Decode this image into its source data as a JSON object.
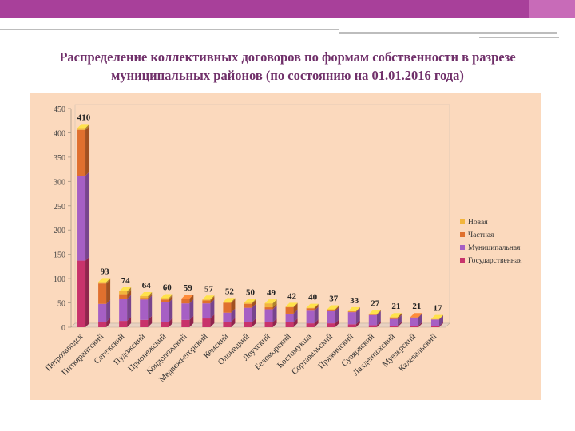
{
  "slide": {
    "title_line1": "Распределение коллективных договоров по формам собственности в разрезе",
    "title_line2": "муниципальных районов (по состоянию на 01.01.2016 года)"
  },
  "colors": {
    "header_bar": "#a8409a",
    "title_text": "#70306a",
    "plot_background": "#fbd9bd",
    "series_new": "#f2b53c",
    "series_private": "#e0702e",
    "series_municipal": "#a65fc4",
    "series_state": "#c8336b"
  },
  "chart_data": {
    "type": "bar",
    "stacked": true,
    "title": "Распределение коллективных договоров по формам собственности в разрезе муниципальных районов (по состоянию на 01.01.2016 года)",
    "xlabel": "",
    "ylabel": "",
    "ylim": [
      0,
      450
    ],
    "ytick_labels": [
      "0",
      "50",
      "100",
      "150",
      "200",
      "250",
      "300",
      "350",
      "400",
      "450"
    ],
    "legend_position": "right",
    "categories": [
      "Петрозаводск",
      "Питкярантский",
      "Сегежский",
      "Пудожский",
      "Прионежский",
      "Кондопожский",
      "Медвежьегорский",
      "Кемский",
      "Олонецкий",
      "Лоухский",
      "Беломорский",
      "Костомукша",
      "Сортавальский",
      "Пряжинский",
      "Суоярвский",
      "Лахденпохский",
      "Муезерский",
      "Калевальский"
    ],
    "totals": [
      410,
      93,
      74,
      64,
      60,
      59,
      57,
      52,
      50,
      49,
      42,
      40,
      37,
      33,
      27,
      21,
      21,
      17
    ],
    "total_labels": [
      "410",
      "93",
      "74",
      "64",
      "60",
      "59",
      "57",
      "52",
      "50",
      "49",
      "42",
      "40",
      "37",
      "33",
      "27",
      "21",
      "21",
      "17"
    ],
    "series": [
      {
        "name": "Государственная",
        "color": "#c8336b",
        "values": [
          137,
          11,
          13,
          15,
          11,
          15,
          18,
          11,
          10,
          10,
          10,
          8,
          8,
          6,
          4,
          3,
          3,
          2
        ]
      },
      {
        "name": "Муниципальная",
        "color": "#a65fc4",
        "values": [
          175,
          37,
          45,
          42,
          40,
          34,
          31,
          19,
          30,
          27,
          18,
          26,
          25,
          25,
          21,
          14,
          17,
          14
        ]
      },
      {
        "name": "Частная",
        "color": "#e0702e",
        "values": [
          94,
          42,
          10,
          3,
          6,
          10,
          6,
          20,
          8,
          4,
          13,
          5,
          3,
          1,
          1,
          3,
          1,
          0
        ]
      },
      {
        "name": "Новая",
        "color": "#f2b53c",
        "values": [
          4,
          3,
          6,
          4,
          3,
          0,
          2,
          2,
          2,
          8,
          1,
          1,
          1,
          1,
          1,
          1,
          0,
          1
        ]
      }
    ],
    "legend_order": [
      "Новая",
      "Частная",
      "Муниципальная",
      "Государственная"
    ]
  }
}
